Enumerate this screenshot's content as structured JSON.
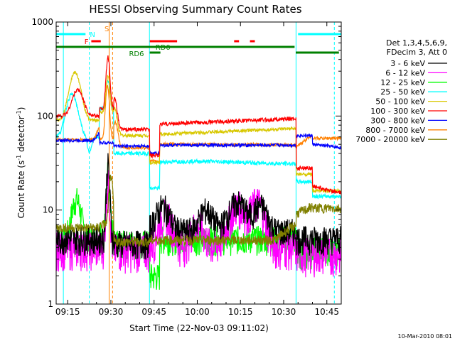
{
  "chart_data": {
    "type": "line",
    "title": "HESSI Observing Summary Count Rates",
    "xlabel": "Start Time (22-Nov-03 09:11:02)",
    "ylabel_main": "Count Rate (s",
    "ylabel_sup1": "-1",
    "ylabel_mid": " detector",
    "ylabel_sup2": "-1",
    "ylabel_end": ")",
    "footer": "10-Mar-2010 08:01",
    "x_unit": "minutes of day",
    "xlim": [
      551,
      650
    ],
    "ylim": [
      1,
      1000
    ],
    "y_scale": "log",
    "x_ticks": [
      {
        "v": 555,
        "label": "09:15"
      },
      {
        "v": 570,
        "label": "09:30"
      },
      {
        "v": 585,
        "label": "09:45"
      },
      {
        "v": 600,
        "label": "10:00"
      },
      {
        "v": 615,
        "label": "10:15"
      },
      {
        "v": 630,
        "label": "10:30"
      },
      {
        "v": 645,
        "label": "10:45"
      }
    ],
    "y_ticks": [
      {
        "v": 1,
        "label": "1"
      },
      {
        "v": 10,
        "label": "10"
      },
      {
        "v": 100,
        "label": "100"
      },
      {
        "v": 1000,
        "label": "1000"
      }
    ],
    "legend_header": [
      "Det 1,3,4,5,6,9,",
      "FDecim 3, Att 0"
    ],
    "legend_position": "right, outside plot",
    "series": [
      {
        "name": "3 - 6 keV",
        "color": "#000000"
      },
      {
        "name": "6 - 12 keV",
        "color": "#ff00ff"
      },
      {
        "name": "12 - 25 keV",
        "color": "#00ff00"
      },
      {
        "name": "25 - 50 keV",
        "color": "#00ffff"
      },
      {
        "name": "50 - 100 keV",
        "color": "#d8c800"
      },
      {
        "name": "100 - 300 keV",
        "color": "#ff0000"
      },
      {
        "name": "300 - 800 keV",
        "color": "#0000ff"
      },
      {
        "name": "800 - 7000 keV",
        "color": "#ff8000"
      },
      {
        "name": "7000 - 20000 keV",
        "color": "#808000"
      }
    ],
    "flags": [
      {
        "label": "F",
        "color": "#ff0000"
      },
      {
        "label": "N",
        "color": "#00ffff"
      },
      {
        "label": "S",
        "color": "#ff8000"
      },
      {
        "label": "RD0",
        "color": "#008000"
      },
      {
        "label": "RD6",
        "color": "#008000"
      }
    ]
  }
}
